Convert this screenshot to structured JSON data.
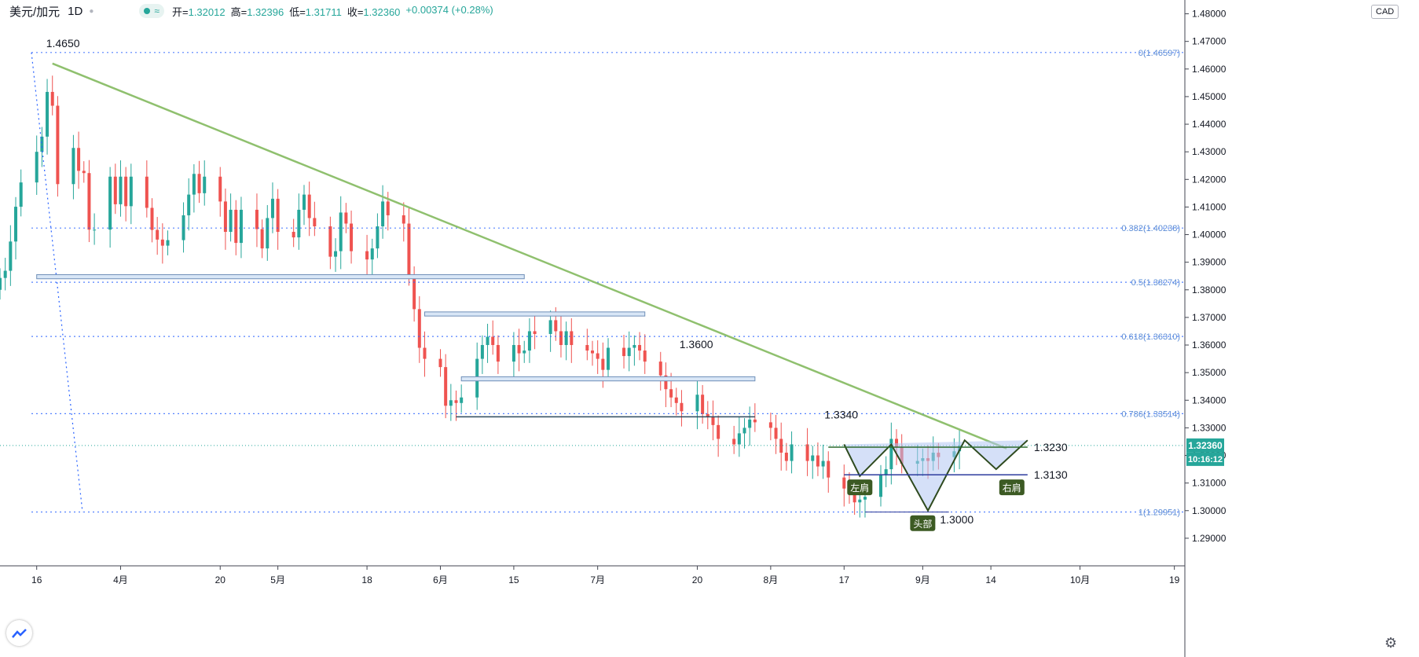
{
  "header": {
    "symbol": "美元/加元",
    "timeframe": "1D",
    "open_label": "开=",
    "open": "1.32012",
    "high_label": "高=",
    "high": "1.32396",
    "low_label": "低=",
    "low": "1.31711",
    "close_label": "收=",
    "close": "1.32360",
    "change": "+0.00374 (+0.28%)"
  },
  "currency_badge": "CAD",
  "price_badge": "1.32360",
  "countdown_badge": "10:16:12",
  "colors": {
    "up": "#26a69a",
    "down": "#ef5350",
    "trendline": "#8fc06e",
    "fib": "#2962ff",
    "pattern_line": "#2e4a1e",
    "pattern_fill": "#b3c6f2"
  },
  "chart_data": {
    "type": "candlestick",
    "y_axis": {
      "min": 1.28,
      "max": 1.485,
      "ticks": [
        "1.29000",
        "1.30000",
        "1.31000",
        "1.32000",
        "1.33000",
        "1.34000",
        "1.35000",
        "1.36000",
        "1.37000",
        "1.38000",
        "1.39000",
        "1.40000",
        "1.41000",
        "1.42000",
        "1.43000",
        "1.44000",
        "1.45000",
        "1.46000",
        "1.47000",
        "1.48000"
      ]
    },
    "x_axis": {
      "start_date": "2020-03-09",
      "end_date": "2020-10-21",
      "ticks": [
        {
          "date": "2020-03-16",
          "label": "16"
        },
        {
          "date": "2020-04-01",
          "label": "4月"
        },
        {
          "date": "2020-04-20",
          "label": "20"
        },
        {
          "date": "2020-05-01",
          "label": "5月"
        },
        {
          "date": "2020-05-18",
          "label": "18"
        },
        {
          "date": "2020-06-01",
          "label": "6月"
        },
        {
          "date": "2020-06-15",
          "label": "15"
        },
        {
          "date": "2020-07-01",
          "label": "7月"
        },
        {
          "date": "2020-07-20",
          "label": "20"
        },
        {
          "date": "2020-08-03",
          "label": "8月"
        },
        {
          "date": "2020-08-17",
          "label": "17"
        },
        {
          "date": "2020-09-01",
          "label": "9月"
        },
        {
          "date": "2020-09-14",
          "label": "14"
        },
        {
          "date": "2020-10-01",
          "label": "10月"
        },
        {
          "date": "2020-10-19",
          "label": "19"
        }
      ]
    },
    "closes": [
      [
        1.3843,
        1.3869,
        1.3975,
        1.4101,
        1.4189,
        1.43,
        1.4355,
        1.4517,
        1.4467,
        1.4183,
        1.4314,
        1.4231,
        1.4223,
        1.4018,
        1.4018,
        1.421,
        1.411,
        1.421,
        1.4103,
        1.421,
        1.4097,
        1.4017,
        1.3982,
        1.396,
        1.398,
        1.407,
        1.4145,
        1.422,
        1.415,
        1.421,
        1.412,
        1.401,
        1.409,
        1.397,
        1.409,
        1.402,
        1.395,
        1.406,
        1.413,
        1.401,
        1.399,
        1.409,
        1.4145,
        1.406,
        1.403,
        1.392,
        1.394,
        1.408
      ],
      [
        1.404,
        1.394,
        1.391,
        1.395,
        1.403,
        1.412,
        1.407,
        1.404,
        1.385,
        1.373,
        1.359,
        1.355,
        1.352,
        1.338,
        1.34,
        1.339,
        1.341,
        1.355,
        1.36,
        1.363,
        1.36,
        1.354,
        1.36,
        1.357,
        1.358,
        1.365,
        1.364,
        1.369,
        1.365,
        1.36,
        1.365,
        1.36,
        1.358,
        1.357,
        1.355,
        1.351,
        1.359,
        1.356,
        1.359,
        1.36,
        1.358,
        1.354,
        1.349,
        1.344,
        1.341,
        1.339,
        1.336,
        1.342,
        1.335,
        1.334,
        1.331
      ],
      [
        1.326,
        1.324,
        1.328,
        1.33,
        1.333,
        1.332,
        1.33,
        1.326,
        1.321,
        1.318,
        1.324,
        1.318,
        1.32,
        1.316,
        1.318,
        1.312,
        1.308,
        1.306,
        1.303,
        1.304,
        1.305,
        1.313,
        1.315,
        1.326,
        1.323,
        1.317,
        1.318,
        1.319,
        1.318,
        1.321,
        1.3194,
        1.3215,
        1.3236
      ]
    ],
    "series_note": "",
    "horizontal_levels": [
      {
        "fib": "0",
        "price": 1.46597,
        "label": "0(1.46597)"
      },
      {
        "fib": "0.382",
        "price": 1.40238,
        "label": "0.382(1.40238)"
      },
      {
        "fib": "0.5",
        "price": 1.38274,
        "label": "0.5(1.38274)"
      },
      {
        "fib": "0.618",
        "price": 1.3631,
        "label": "0.618(1.36310)"
      },
      {
        "fib": "0.786",
        "price": 1.33514,
        "label": "0.786(1.33514)"
      },
      {
        "fib": "1",
        "price": 1.29951,
        "label": "1(1.29951)"
      }
    ],
    "current_price_line": 1.3236,
    "annotations": [
      {
        "text": "1.4650",
        "date": "2020-03-19",
        "price": 1.465
      },
      {
        "text": "1.3600",
        "date": "2020-07-16",
        "price": 1.36
      },
      {
        "text": "1.3340",
        "date": "2020-08-14",
        "price": 1.334
      },
      {
        "text": "1.3230",
        "date": "2020-09-21",
        "price": 1.323
      },
      {
        "text": "1.3130",
        "date": "2020-09-21",
        "price": 1.313
      },
      {
        "text": "1.3000",
        "date": "2020-09-01",
        "price": 1.3
      }
    ],
    "pattern_labels": [
      {
        "text": "左肩",
        "date": "2020-08-20",
        "price": 1.313
      },
      {
        "text": "头部",
        "date": "2020-09-01",
        "price": 1.3
      },
      {
        "text": "右肩",
        "date": "2020-09-18",
        "price": 1.313
      }
    ],
    "trendline": {
      "from": {
        "date": "2020-03-19",
        "price": 1.462
      },
      "to": {
        "date": "2020-09-17",
        "price": 1.3225
      }
    },
    "neckline": 1.323,
    "support_line": 1.313
  }
}
